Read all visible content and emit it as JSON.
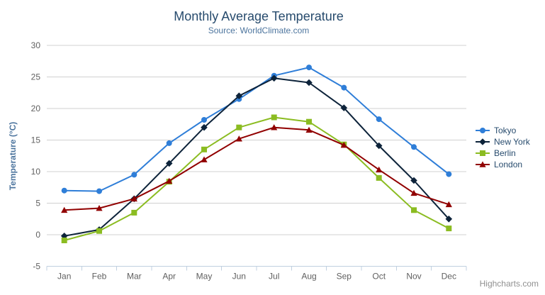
{
  "header": {
    "title": "Monthly Average Temperature",
    "subtitle": "Source: WorldClimate.com"
  },
  "export_menu": {
    "icon": "hamburger-menu-icon"
  },
  "credits": {
    "label": "Highcharts.com"
  },
  "palette": {
    "title_color": "#274b6d",
    "subtitle_color": "#4d759e",
    "axis_label_color": "#606060",
    "axis_title_color": "#4d759e",
    "legend_text_color": "#274b6d",
    "gridline_color": "#d0d0d0",
    "axis_line_color": "#c0d0e0",
    "credits_color": "#909090"
  },
  "chart_data": {
    "type": "line",
    "title": "Monthly Average Temperature",
    "subtitle": "Source: WorldClimate.com",
    "xlabel": "",
    "ylabel": "Temperature (°C)",
    "ylim": [
      -5,
      30
    ],
    "yticks": [
      -5,
      0,
      5,
      10,
      15,
      20,
      25,
      30
    ],
    "grid": true,
    "legend_position": "right",
    "categories": [
      "Jan",
      "Feb",
      "Mar",
      "Apr",
      "May",
      "Jun",
      "Jul",
      "Aug",
      "Sep",
      "Oct",
      "Nov",
      "Dec"
    ],
    "series": [
      {
        "name": "Tokyo",
        "color": "#2f7ed8",
        "marker": "circle",
        "values": [
          7.0,
          6.9,
          9.5,
          14.5,
          18.2,
          21.5,
          25.2,
          26.5,
          23.3,
          18.3,
          13.9,
          9.6
        ]
      },
      {
        "name": "New York",
        "color": "#0d233a",
        "marker": "diamond",
        "values": [
          -0.2,
          0.8,
          5.7,
          11.3,
          17.0,
          22.0,
          24.8,
          24.1,
          20.1,
          14.1,
          8.6,
          2.5
        ]
      },
      {
        "name": "Berlin",
        "color": "#8bbc21",
        "marker": "square",
        "values": [
          -0.9,
          0.6,
          3.5,
          8.4,
          13.5,
          17.0,
          18.6,
          17.9,
          14.3,
          9.0,
          3.9,
          1.0
        ]
      },
      {
        "name": "London",
        "color": "#910000",
        "marker": "triangle",
        "values": [
          3.9,
          4.2,
          5.7,
          8.5,
          11.9,
          15.2,
          17.0,
          16.6,
          14.2,
          10.3,
          6.6,
          4.8
        ]
      }
    ]
  }
}
